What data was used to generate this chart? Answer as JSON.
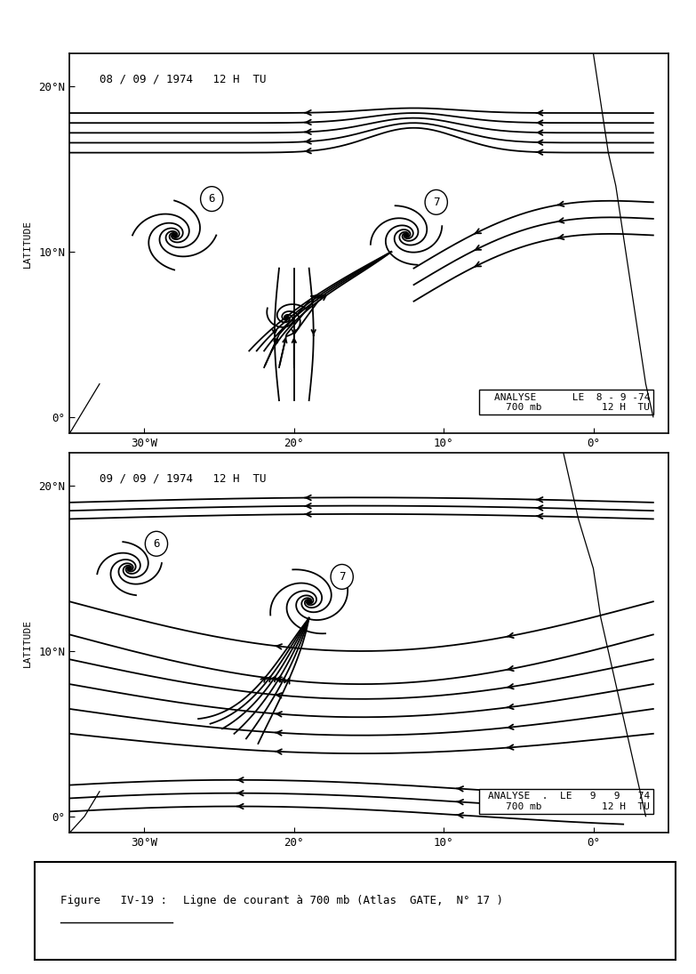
{
  "title1": "08 / 09 / 1974   12 H  TU",
  "title2": "09 / 09 / 1974   12 H  TU",
  "analyse1_line1": "ANALYSE      LE  8 - 9 -74",
  "analyse1_line2": "    700 mb          12 H  TU",
  "analyse2_line1": "ANALYSE  .  LE   9   9   74",
  "analyse2_line2": "    700 mb          12 H  TU",
  "xlabel": [
    "30°W",
    "20°",
    "10°",
    "0°"
  ],
  "ylabel_lat": [
    "0°",
    "10°N",
    "20°N"
  ],
  "ylabel_label": "LATITUDE",
  "caption_label": "Figure   IV-19 :",
  "caption_text": "    Ligne de courant à 700 mb (Atlas  GATE,  N° 17 )",
  "bg_color": "#ffffff",
  "line_color": "#000000",
  "xlim": [
    -35,
    5
  ],
  "ylim": [
    -1,
    22
  ]
}
